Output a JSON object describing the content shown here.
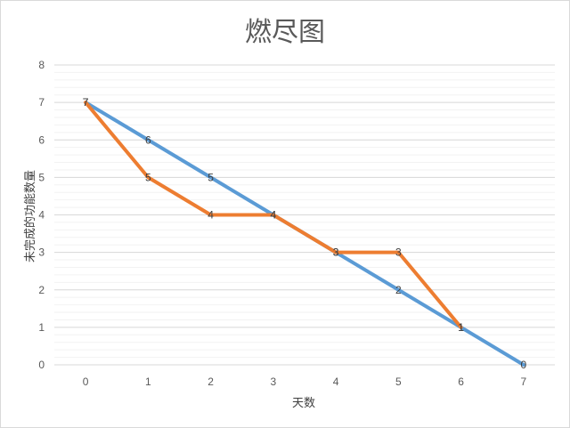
{
  "chart_data": {
    "type": "line",
    "title": "燃尽图",
    "xlabel": "天数",
    "ylabel": "未完成的功能数量",
    "x": [
      0,
      1,
      2,
      3,
      4,
      5,
      6,
      7
    ],
    "ylim": [
      0,
      8
    ],
    "y_ticks": [
      0,
      1,
      2,
      3,
      4,
      5,
      6,
      7,
      8
    ],
    "grid": true,
    "series": [
      {
        "color": "#5b9bd5",
        "values": [
          7,
          6,
          5,
          4,
          3,
          2,
          1,
          0
        ]
      },
      {
        "color": "#ed7d31",
        "values": [
          7,
          5,
          4,
          4,
          3,
          3,
          1,
          null
        ]
      }
    ],
    "data_labels": true
  }
}
